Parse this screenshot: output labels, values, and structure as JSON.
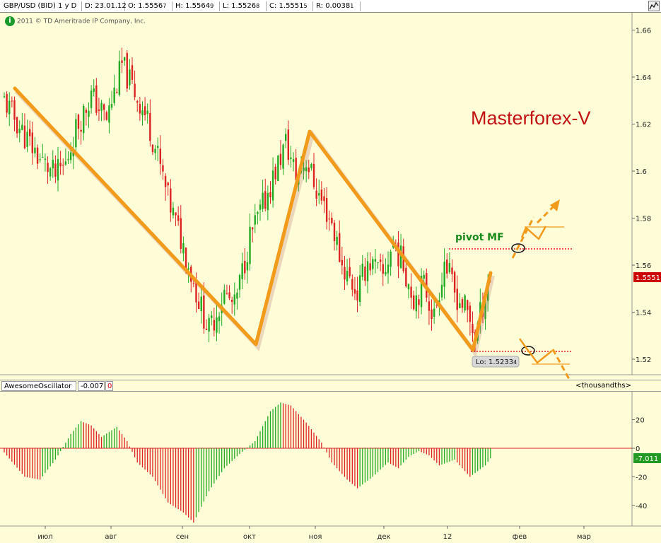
{
  "header": {
    "symbol": "GBP/USD (BID) 1 y D",
    "date": "D: 23.01.12",
    "open_label": "O: 1.5556",
    "open_sub": "7",
    "high_label": "H: 1.5564",
    "high_sub": "9",
    "low_label": "L: 1.5526",
    "low_sub": "8",
    "close_label": "C: 1.5551",
    "close_sub": "5",
    "range_label": "R: 0.0038",
    "range_sub": "1"
  },
  "copyright": "2011 © TD Ameritrade IP Company, Inc.",
  "annotations": {
    "brand": "Masterforex-V",
    "pivot": "pivot MF",
    "low_marker": "Lo: 1.5233",
    "low_marker_sub": "4"
  },
  "oscillator": {
    "name": "AwesomeOscillator",
    "value": "-0.007",
    "value2": "0",
    "scale_label": "<thousandths>"
  },
  "price_tag": {
    "text": "1.5551",
    "color": "#cc0000"
  },
  "osc_tag": {
    "text": "-7.011",
    "color": "#229922"
  },
  "colors": {
    "up": "#22aa22",
    "down": "#dd2222",
    "trend": "#f29a1a",
    "background": "#fffdd8"
  },
  "chart_data": [
    {
      "type": "candlestick",
      "title": "GBP/USD (BID) 1 y D",
      "ylim": [
        1.515,
        1.67
      ],
      "y_ticks": [
        1.52,
        1.54,
        1.56,
        1.58,
        1.6,
        1.62,
        1.64,
        1.66
      ],
      "x_tick_labels": [
        "июл",
        "авг",
        "сен",
        "окт",
        "ноя",
        "дек",
        "12",
        "фев",
        "мар"
      ],
      "close_anchors": [
        [
          0,
          1.63
        ],
        [
          8,
          1.615
        ],
        [
          14,
          1.605
        ],
        [
          20,
          1.598
        ],
        [
          24,
          1.603
        ],
        [
          28,
          1.618
        ],
        [
          34,
          1.632
        ],
        [
          40,
          1.622
        ],
        [
          46,
          1.645
        ],
        [
          50,
          1.636
        ],
        [
          56,
          1.622
        ],
        [
          60,
          1.606
        ],
        [
          64,
          1.588
        ],
        [
          70,
          1.568
        ],
        [
          76,
          1.545
        ],
        [
          80,
          1.532
        ],
        [
          86,
          1.548
        ],
        [
          90,
          1.542
        ],
        [
          96,
          1.572
        ],
        [
          100,
          1.582
        ],
        [
          106,
          1.6
        ],
        [
          110,
          1.612
        ],
        [
          114,
          1.598
        ],
        [
          118,
          1.605
        ],
        [
          122,
          1.592
        ],
        [
          128,
          1.578
        ],
        [
          132,
          1.56
        ],
        [
          138,
          1.548
        ],
        [
          142,
          1.562
        ],
        [
          148,
          1.555
        ],
        [
          152,
          1.57
        ],
        [
          156,
          1.56
        ],
        [
          160,
          1.546
        ],
        [
          164,
          1.552
        ],
        [
          168,
          1.538
        ],
        [
          172,
          1.562
        ],
        [
          176,
          1.548
        ],
        [
          180,
          1.542
        ],
        [
          184,
          1.53
        ],
        [
          188,
          1.548
        ],
        [
          190,
          1.5551
        ]
      ],
      "last": {
        "open": 1.55567,
        "high": 1.55649,
        "low": 1.55268,
        "close": 1.55515
      },
      "low_value": 1.52334
    },
    {
      "type": "histogram",
      "name": "AwesomeOscillator",
      "unit": "thousandths",
      "ylim": [
        -53,
        37
      ],
      "y_ticks": [
        -40,
        -20,
        0,
        20
      ],
      "anchors": [
        [
          0,
          -3
        ],
        [
          8,
          -20
        ],
        [
          14,
          -22
        ],
        [
          20,
          -8
        ],
        [
          26,
          10
        ],
        [
          30,
          19
        ],
        [
          34,
          16
        ],
        [
          38,
          8
        ],
        [
          44,
          15
        ],
        [
          48,
          5
        ],
        [
          52,
          -10
        ],
        [
          58,
          -20
        ],
        [
          64,
          -38
        ],
        [
          70,
          -45
        ],
        [
          74,
          -52
        ],
        [
          80,
          -30
        ],
        [
          86,
          -14
        ],
        [
          92,
          -4
        ],
        [
          98,
          5
        ],
        [
          104,
          26
        ],
        [
          108,
          32
        ],
        [
          112,
          30
        ],
        [
          118,
          18
        ],
        [
          124,
          4
        ],
        [
          128,
          -10
        ],
        [
          134,
          -22
        ],
        [
          138,
          -28
        ],
        [
          144,
          -20
        ],
        [
          150,
          -10
        ],
        [
          154,
          -14
        ],
        [
          158,
          -6
        ],
        [
          162,
          -2
        ],
        [
          166,
          -5
        ],
        [
          170,
          -12
        ],
        [
          176,
          -8
        ],
        [
          182,
          -20
        ],
        [
          188,
          -12
        ],
        [
          190,
          -7.011
        ]
      ]
    }
  ]
}
